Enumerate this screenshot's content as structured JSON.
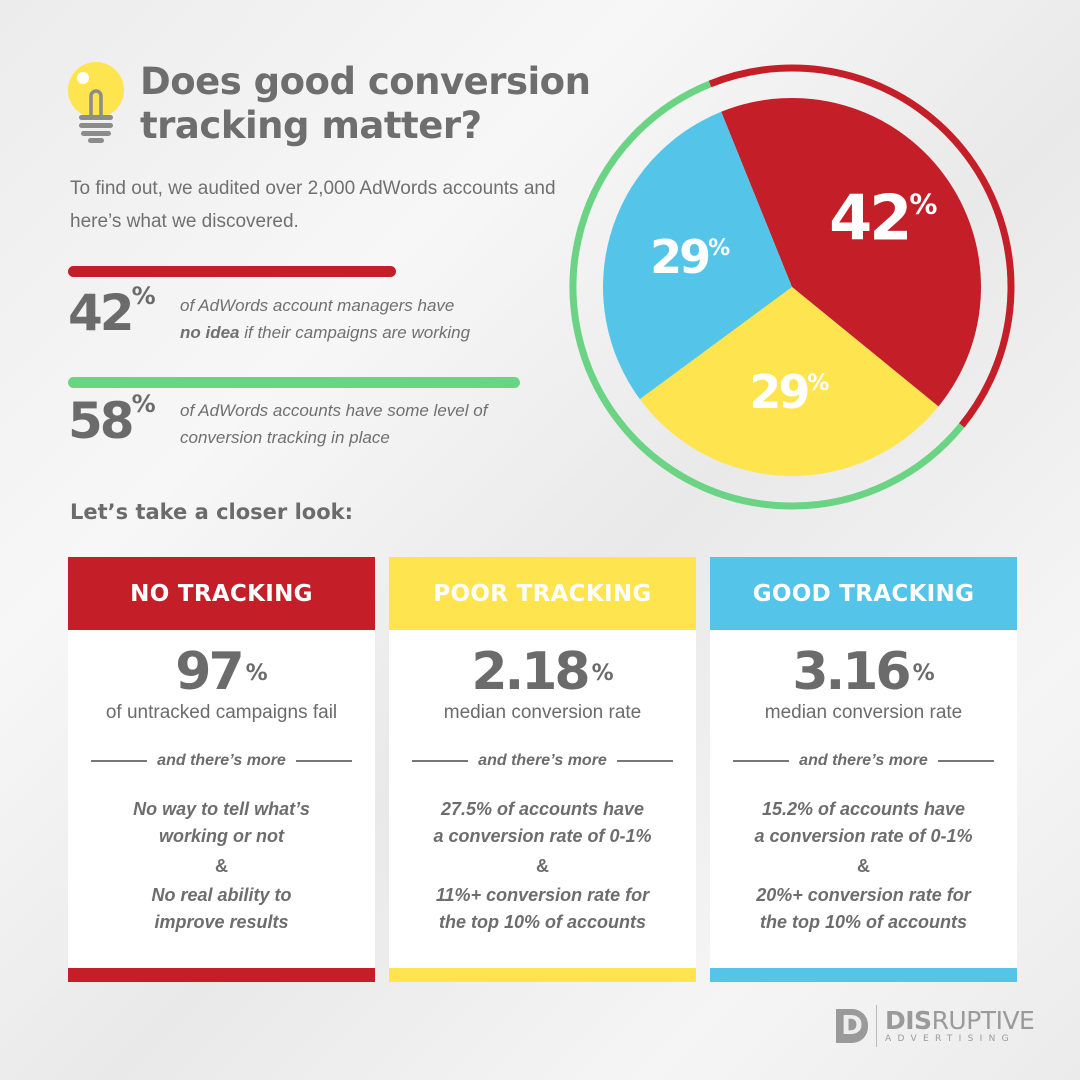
{
  "header": {
    "title_line1": "Does good conversion",
    "title_line2": "tracking matter?",
    "intro": "To find out, we audited over 2,000 AdWords accounts and here’s what we discovered.",
    "icon": "lightbulb-icon"
  },
  "stats": [
    {
      "value": "42",
      "unit": "%",
      "text_pre": "of AdWords account managers have",
      "text_bold": "no idea",
      "text_post": " if their campaigns are working",
      "bar_percent": 42,
      "color": "#c41f28"
    },
    {
      "value": "58",
      "unit": "%",
      "text_pre": "of AdWords accounts have some level of",
      "text_bold": "",
      "text_post": "conversion tracking in place",
      "bar_percent": 58,
      "color": "#6bd484"
    }
  ],
  "closer": "Let’s take a closer look:",
  "cards": [
    {
      "title": "NO TRACKING",
      "color": "#c41f28",
      "value": "97",
      "unit": "%",
      "desc": "of untracked campaigns fail",
      "more": "and there’s more",
      "d1a": "No way to tell what’s",
      "d1b": "working or not",
      "amp": "&",
      "d2a": "No real ability to",
      "d2b": "improve results"
    },
    {
      "title": "POOR TRACKING",
      "color": "#fee54f",
      "value": "2.18",
      "unit": "%",
      "desc": "median conversion rate",
      "more": "and there’s more",
      "d1a": "27.5% of accounts have",
      "d1b": "a conversion rate of 0-1%",
      "amp": "&",
      "d2a": "11%+ conversion rate for",
      "d2b": "the top 10% of accounts"
    },
    {
      "title": "GOOD TRACKING",
      "color": "#54c5e9",
      "value": "3.16",
      "unit": "%",
      "desc": "median conversion rate",
      "more": "and there’s more",
      "d1a": "15.2% of accounts have",
      "d1b": "a conversion rate of 0-1%",
      "amp": "&",
      "d2a": "20%+ conversion rate for",
      "d2b": "the top 10% of accounts"
    }
  ],
  "logo": {
    "word_bold": "DIS",
    "word_light": "RUPTIVE",
    "sub": "ADVERTISING",
    "mark": "D"
  },
  "chart_data": {
    "type": "pie",
    "slices": [
      {
        "label": "42%",
        "value": 42,
        "color": "#c41f28"
      },
      {
        "label": "29%",
        "value": 29,
        "color": "#fee54f"
      },
      {
        "label": "29%",
        "value": 29,
        "color": "#54c5e9"
      }
    ],
    "outer_ring": [
      {
        "value": 42,
        "color": "#c41f28"
      },
      {
        "value": 58,
        "color": "#6bd484"
      }
    ]
  }
}
